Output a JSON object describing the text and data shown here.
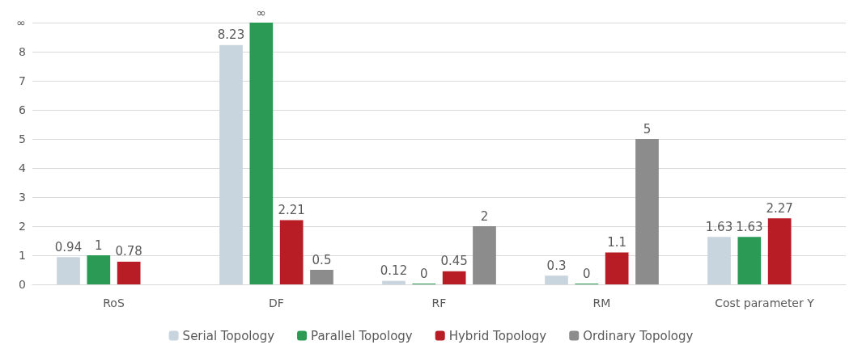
{
  "chart_data": {
    "type": "bar",
    "categories": [
      "RoS",
      "DF",
      "RF",
      "RM",
      "Cost parameter Y"
    ],
    "series": [
      {
        "name": "Serial Topology",
        "color": "#c8d5de",
        "values": [
          0.94,
          8.23,
          0.12,
          0.3,
          1.63
        ],
        "value_labels": [
          "0.94",
          "8.23",
          "0.12",
          "0.3",
          "1.63"
        ]
      },
      {
        "name": "Parallel Topology",
        "color": "#2a9a55",
        "values": [
          1,
          9,
          0,
          0,
          1.63
        ],
        "value_labels": [
          "1",
          "∞",
          "0",
          "0",
          "1.63"
        ]
      },
      {
        "name": "Hybrid Topology",
        "color": "#b81c24",
        "values": [
          0.78,
          2.21,
          0.45,
          1.1,
          2.27
        ],
        "value_labels": [
          "0.78",
          "2.21",
          "0.45",
          "1.1",
          "2.27"
        ]
      },
      {
        "name": "Ordinary Topology",
        "color": "#8c8c8c",
        "values": [
          null,
          0.5,
          2,
          5,
          null
        ],
        "value_labels": [
          null,
          "0.5",
          "2",
          "5",
          null
        ]
      }
    ],
    "ylim": [
      0,
      9
    ],
    "yticks": [
      0,
      1,
      2,
      3,
      4,
      5,
      6,
      7,
      8,
      {
        "value": 9,
        "label": "∞"
      }
    ],
    "grid": "y",
    "legend": "bottom"
  }
}
